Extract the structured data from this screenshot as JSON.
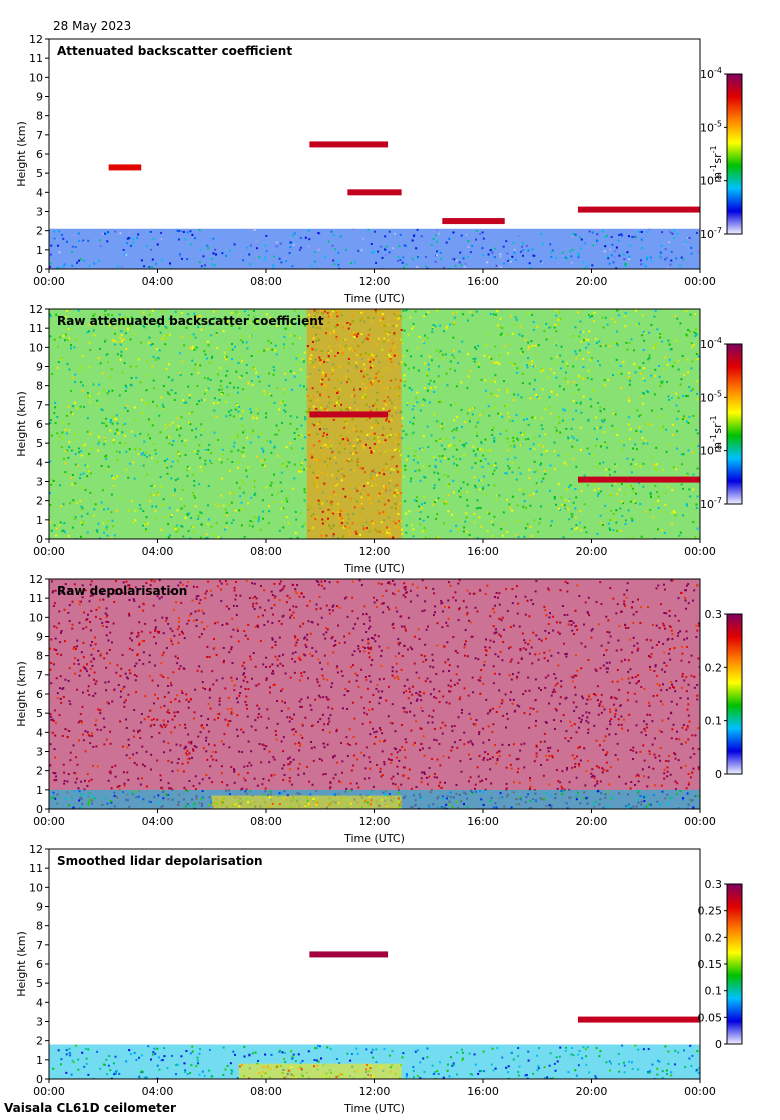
{
  "date": "28 May 2023",
  "footer": "Vaisala CL61D ceilometer",
  "colors": {
    "rainbow": [
      "#f2f2ff",
      "#0000e0",
      "#00c0ff",
      "#00c000",
      "#ffff00",
      "#ff8000",
      "#e00000",
      "#800060"
    ],
    "background": "#ffffff"
  },
  "chart_data": [
    {
      "type": "heatmap",
      "title": "Attenuated backscatter coefficient",
      "xlabel": "Time (UTC)",
      "ylabel": "Height (km)",
      "xticks": [
        "00:00",
        "04:00",
        "08:00",
        "12:00",
        "16:00",
        "20:00",
        "00:00"
      ],
      "yticks": [
        "0",
        "1",
        "2",
        "3",
        "4",
        "5",
        "6",
        "7",
        "8",
        "9",
        "10",
        "11",
        "12"
      ],
      "xlim_hours": [
        0,
        24
      ],
      "ylim_km": [
        0,
        12
      ],
      "colorbar": {
        "scale": "log",
        "range": [
          1e-07,
          0.0001
        ],
        "ticks": [
          {
            "base": "10",
            "exp": "-7"
          },
          {
            "base": "10",
            "exp": "-6"
          },
          {
            "base": "10",
            "exp": "-5"
          },
          {
            "base": "10",
            "exp": "-4"
          }
        ],
        "unit_parts": [
          {
            "t": "m",
            "sup": "-1"
          },
          {
            "t": " sr",
            "sup": "-1"
          }
        ]
      },
      "features": [
        {
          "name": "boundary layer",
          "t_start": 0,
          "t_end": 24,
          "z_top_km": 2.1,
          "level": 0.2
        },
        {
          "name": "cloud layer",
          "t_start": 2.2,
          "t_end": 3.4,
          "z_km": 5.3,
          "level": 0.85
        },
        {
          "name": "cloud layer",
          "t_start": 9.6,
          "t_end": 12.5,
          "z_km": 6.5,
          "level": 0.9
        },
        {
          "name": "cloud layer",
          "t_start": 11,
          "t_end": 13,
          "z_km": 4.0,
          "level": 0.9
        },
        {
          "name": "cloud layer",
          "t_start": 14.5,
          "t_end": 16.8,
          "z_km": 2.5,
          "level": 0.9
        },
        {
          "name": "cloud layer",
          "t_start": 19.5,
          "t_end": 24,
          "z_km": 3.1,
          "level": 0.9
        }
      ]
    },
    {
      "type": "heatmap",
      "title": "Raw attenuated backscatter coefficient",
      "xlabel": "Time (UTC)",
      "ylabel": "Height (km)",
      "xticks": [
        "00:00",
        "04:00",
        "08:00",
        "12:00",
        "16:00",
        "20:00",
        "00:00"
      ],
      "yticks": [
        "0",
        "1",
        "2",
        "3",
        "4",
        "5",
        "6",
        "7",
        "8",
        "9",
        "10",
        "11",
        "12"
      ],
      "xlim_hours": [
        0,
        24
      ],
      "ylim_km": [
        0,
        12
      ],
      "colorbar": {
        "scale": "log",
        "range": [
          1e-07,
          0.0001
        ],
        "ticks": [
          {
            "base": "10",
            "exp": "-7"
          },
          {
            "base": "10",
            "exp": "-6"
          },
          {
            "base": "10",
            "exp": "-5"
          },
          {
            "base": "10",
            "exp": "-4"
          }
        ],
        "unit_parts": [
          {
            "t": "m",
            "sup": "-1"
          },
          {
            "t": " sr",
            "sup": "-1"
          }
        ]
      },
      "features": [
        {
          "name": "noisy background",
          "t_start": 0,
          "t_end": 24,
          "z_top_km": 12,
          "level": 0.45
        },
        {
          "name": "solar noise maximum",
          "t_start": 9.5,
          "t_end": 13,
          "z_top_km": 12,
          "level": 0.7
        },
        {
          "name": "cloud layer",
          "t_start": 9.6,
          "t_end": 12.5,
          "z_km": 6.5,
          "level": 0.9
        },
        {
          "name": "cloud layer",
          "t_start": 19.5,
          "t_end": 24,
          "z_km": 3.1,
          "level": 0.9
        }
      ]
    },
    {
      "type": "heatmap",
      "title": "Raw depolarisation",
      "xlabel": "Time (UTC)",
      "ylabel": "Height (km)",
      "xticks": [
        "00:00",
        "04:00",
        "08:00",
        "12:00",
        "16:00",
        "20:00",
        "00:00"
      ],
      "yticks": [
        "0",
        "1",
        "2",
        "3",
        "4",
        "5",
        "6",
        "7",
        "8",
        "9",
        "10",
        "11",
        "12"
      ],
      "xlim_hours": [
        0,
        24
      ],
      "ylim_km": [
        0,
        12
      ],
      "colorbar": {
        "scale": "linear",
        "range": [
          0,
          0.3
        ],
        "ticks": [
          "0",
          "0.1",
          "0.2",
          "0.3"
        ]
      },
      "features": [
        {
          "name": "noise",
          "t_start": 0,
          "t_end": 24,
          "z_top_km": 12,
          "level": 0.95
        },
        {
          "name": "near-surface layer",
          "t_start": 0,
          "t_end": 24,
          "z_top_km": 1.0,
          "level": 0.3
        },
        {
          "name": "near-surface aerosol",
          "t_start": 6,
          "t_end": 13,
          "z_top_km": 0.7,
          "level": 0.6
        }
      ]
    },
    {
      "type": "heatmap",
      "title": "Smoothed lidar depolarisation",
      "xlabel": "Time (UTC)",
      "ylabel": "Height (km)",
      "xticks": [
        "00:00",
        "04:00",
        "08:00",
        "12:00",
        "16:00",
        "20:00",
        "00:00"
      ],
      "yticks": [
        "0",
        "1",
        "2",
        "3",
        "4",
        "5",
        "6",
        "7",
        "8",
        "9",
        "10",
        "11",
        "12"
      ],
      "xlim_hours": [
        0,
        24
      ],
      "ylim_km": [
        0,
        12
      ],
      "colorbar": {
        "scale": "linear",
        "range": [
          0,
          0.3
        ],
        "ticks": [
          "0",
          "0.05",
          "0.1",
          "0.15",
          "0.2",
          "0.25",
          "0.3"
        ]
      },
      "features": [
        {
          "name": "boundary layer",
          "t_start": 0,
          "t_end": 24,
          "z_top_km": 1.8,
          "level": 0.3
        },
        {
          "name": "near-surface aerosol",
          "t_start": 7,
          "t_end": 13,
          "z_top_km": 0.8,
          "level": 0.6
        },
        {
          "name": "cloud layer",
          "t_start": 9.6,
          "t_end": 12.5,
          "z_km": 6.5,
          "level": 0.95
        },
        {
          "name": "cloud layer",
          "t_start": 19.5,
          "t_end": 24,
          "z_km": 3.1,
          "level": 0.9
        }
      ]
    }
  ]
}
